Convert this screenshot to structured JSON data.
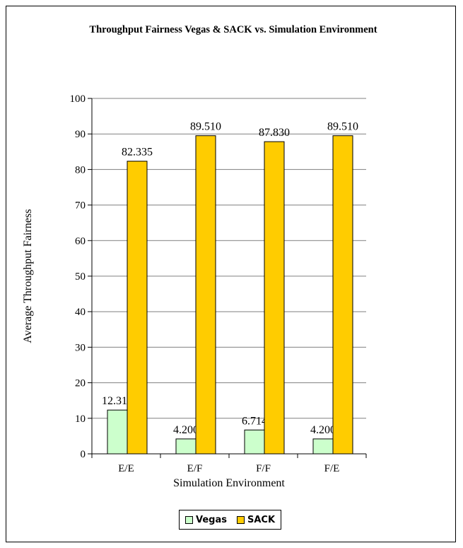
{
  "chart_data": {
    "type": "bar",
    "title": "Throughput Fairness Vegas & SACK vs. Simulation Environment",
    "xlabel": "Simulation Environment",
    "ylabel": "Average Throughput Fairness",
    "categories": [
      "E/E",
      "E/F",
      "F/F",
      "F/E"
    ],
    "ylim": [
      0,
      100
    ],
    "yticks": [
      0,
      10,
      20,
      30,
      40,
      50,
      60,
      70,
      80,
      90,
      100
    ],
    "grid": true,
    "legend_position": "bottom",
    "series": [
      {
        "name": "Vegas",
        "color": "#ccffcc",
        "values": [
          12.318,
          4.2,
          6.714,
          4.2
        ],
        "labels": [
          "12.318",
          "4.200",
          "6.714",
          "4.200"
        ]
      },
      {
        "name": "SACK",
        "color": "#ffcc00",
        "values": [
          82.335,
          89.51,
          87.83,
          89.51
        ],
        "labels": [
          "82.335",
          "89.510",
          "87.830",
          "89.510"
        ]
      }
    ]
  }
}
